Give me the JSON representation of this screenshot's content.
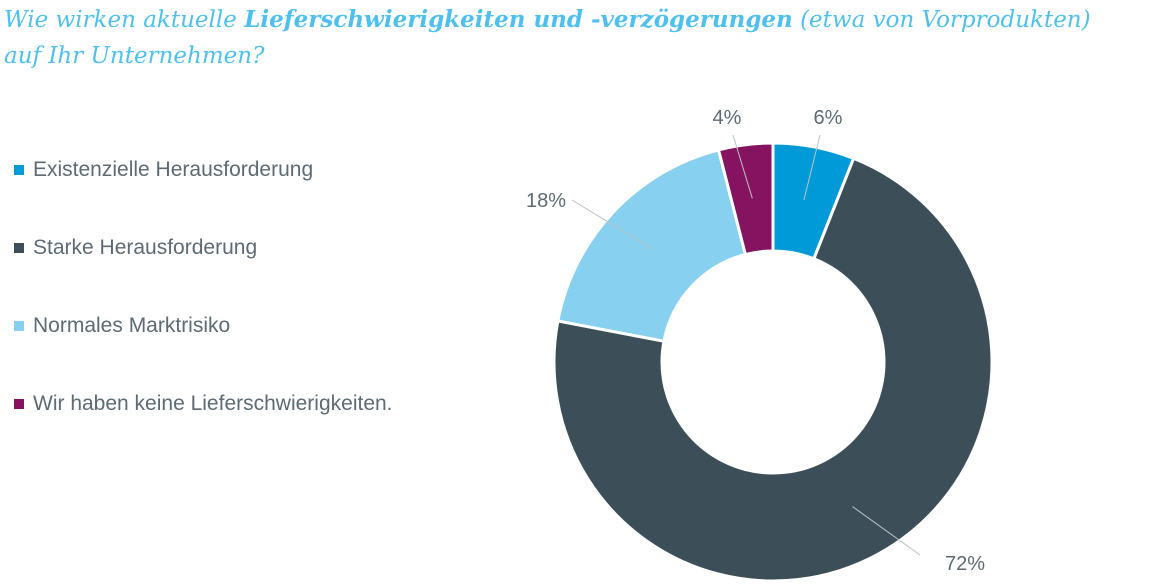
{
  "title": {
    "part1": "Wie wirken aktuelle ",
    "emphasis": "Lieferschwierigkeiten und -verzögerungen",
    "part2": " (etwa von Vorprodukten)",
    "line2": "auf Ihr Unternehmen?"
  },
  "chart_data": {
    "type": "pie",
    "variant": "donut",
    "title": "Wie wirken aktuelle Lieferschwierigkeiten und -verzögerungen (etwa von Vorprodukten) auf Ihr Unternehmen?",
    "legend_position": "left",
    "series": [
      {
        "name": "Existenzielle Herausforderung",
        "value": 6,
        "label": "6%",
        "color": "#009ad9"
      },
      {
        "name": "Starke Herausforderung",
        "value": 72,
        "label": "72%",
        "color": "#3c4f58"
      },
      {
        "name": "Normales Marktrisiko",
        "value": 18,
        "label": "18%",
        "color": "#87d0f0"
      },
      {
        "name": "Wir haben keine Lieferschwierigkeiten.",
        "value": 4,
        "label": "4%",
        "color": "#86135f"
      }
    ]
  }
}
